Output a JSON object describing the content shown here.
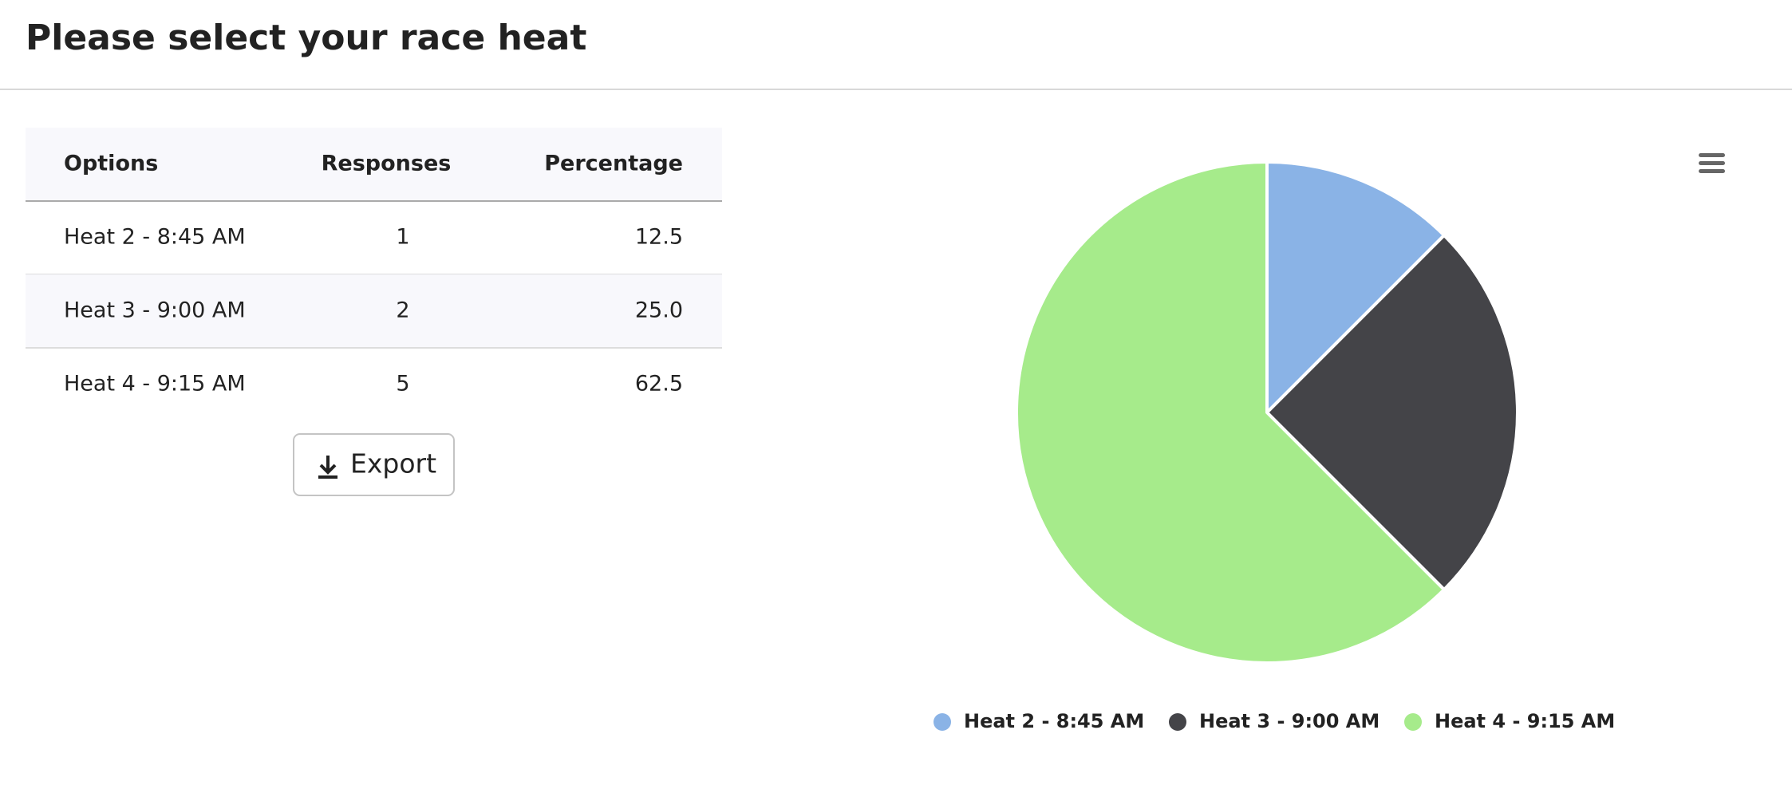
{
  "header": {
    "title": "Please select your race heat"
  },
  "table": {
    "columns": [
      "Options",
      "Responses",
      "Percentage"
    ],
    "rows": [
      [
        "Heat 2 - 8:45 AM",
        "1",
        "12.5"
      ],
      [
        "Heat 3 - 9:00 AM",
        "2",
        "25.0"
      ],
      [
        "Heat 4 - 9:15 AM",
        "5",
        "62.5"
      ]
    ]
  },
  "export_button": {
    "label": "Export"
  },
  "chart_data": {
    "type": "pie",
    "categories": [
      "Heat 2 - 8:45 AM",
      "Heat 3 - 9:00 AM",
      "Heat 4 - 9:15 AM"
    ],
    "values": [
      12.5,
      25.0,
      62.5
    ],
    "colors": [
      "#8ab3e6",
      "#444448",
      "#a6eb8b"
    ],
    "legend": "bottom"
  }
}
